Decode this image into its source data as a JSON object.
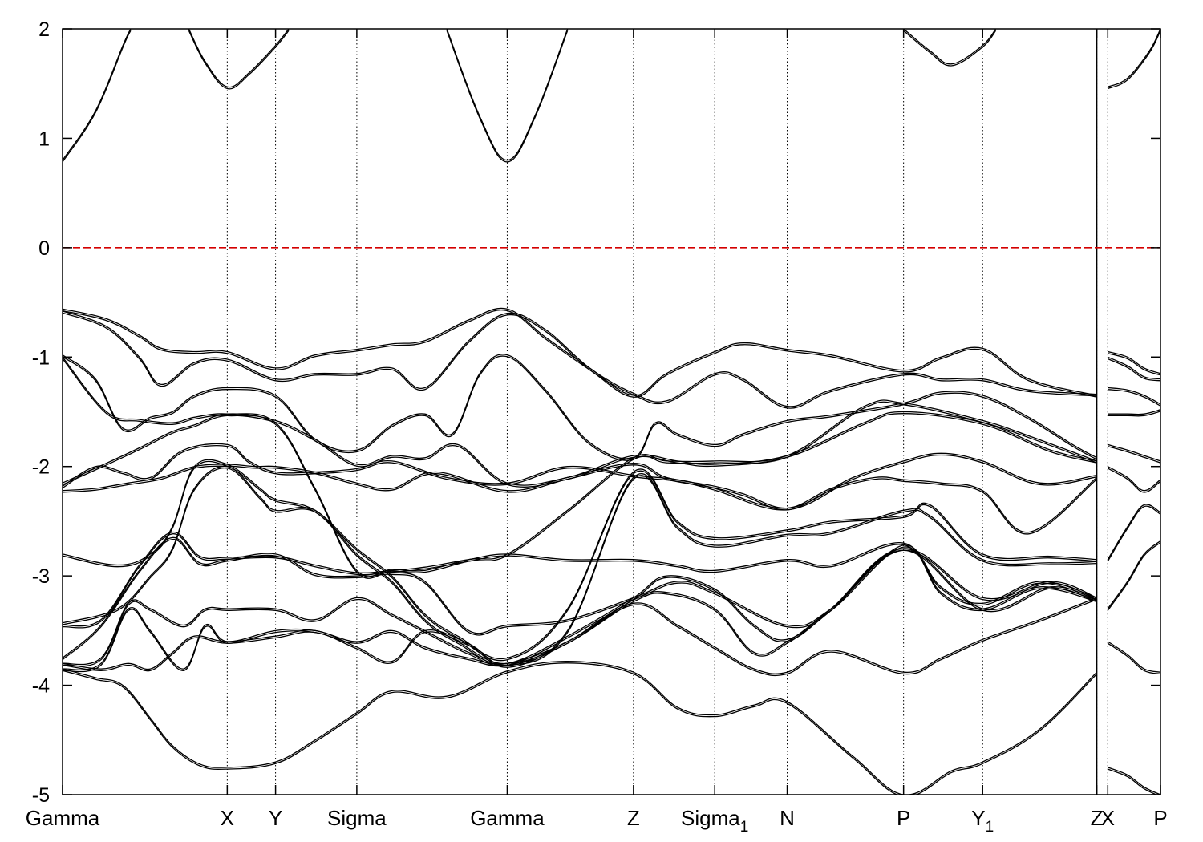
{
  "chart_data": {
    "type": "line",
    "title": "",
    "xlabel": "",
    "ylabel": "",
    "ylim": [
      -5,
      2
    ],
    "y_ticks": [
      -5,
      -4,
      -3,
      -2,
      -1,
      0,
      1,
      2
    ],
    "y_tick_labels": [
      "-5",
      "-4",
      "-3",
      "-2",
      "-1",
      "0",
      "1",
      "2"
    ],
    "k_path": [
      {
        "label": "Gamma",
        "sub": "",
        "x": 0.0
      },
      {
        "label": "X",
        "sub": "",
        "x": 1.5
      },
      {
        "label": "Y",
        "sub": "",
        "x": 1.94
      },
      {
        "label": "Sigma",
        "sub": "",
        "x": 2.68
      },
      {
        "label": "Gamma",
        "sub": "",
        "x": 4.05
      },
      {
        "label": "Z",
        "sub": "",
        "x": 5.2
      },
      {
        "label": "Sigma",
        "sub": "1",
        "x": 5.94
      },
      {
        "label": "N",
        "sub": "",
        "x": 6.6
      },
      {
        "label": "P",
        "sub": "",
        "x": 7.66
      },
      {
        "label": "Y",
        "sub": "1",
        "x": 8.38
      },
      {
        "label": "Z",
        "sub": "",
        "x": 9.42
      },
      {
        "label": "X",
        "sub": "",
        "x": 9.52
      },
      {
        "label": "P",
        "sub": "",
        "x": 10.0
      }
    ],
    "path_break_x": 9.42,
    "fermi_level": 0,
    "fermi_color": "#d40000",
    "band_color": "#000000",
    "grid": "vertical dotted lines at high-symmetry points",
    "legend": "none",
    "series": [
      {
        "x": [
          0,
          0.3,
          0.55,
          0.62
        ],
        "y": [
          0.8,
          1.25,
          1.85,
          2.0
        ]
      },
      {
        "x": [
          1.15,
          1.3,
          1.5,
          1.7,
          1.94,
          2.06
        ],
        "y": [
          2.0,
          1.7,
          1.47,
          1.6,
          1.85,
          2.0
        ]
      },
      {
        "x": [
          3.5,
          3.8,
          4.05,
          4.3,
          4.6
        ],
        "y": [
          2.0,
          1.2,
          0.8,
          1.2,
          2.0
        ]
      },
      {
        "x": [
          7.66,
          7.9,
          8.1,
          8.38,
          8.5
        ],
        "y": [
          2.0,
          1.8,
          1.68,
          1.85,
          2.0
        ]
      },
      {
        "x": [
          9.52,
          9.7,
          9.9,
          10.0
        ],
        "y": [
          1.47,
          1.55,
          1.8,
          2.0
        ]
      },
      {
        "x": [
          0,
          0.4,
          0.7,
          0.9,
          1.2,
          1.5,
          1.94,
          2.3,
          2.68,
          3.0,
          3.3,
          3.7,
          4.05,
          4.4,
          4.8,
          5.2,
          5.5,
          5.94,
          6.2,
          6.6,
          7.0,
          7.66,
          8.0,
          8.38,
          8.8,
          9.42
        ],
        "y": [
          -0.56,
          -0.65,
          -0.8,
          -0.92,
          -0.95,
          -0.95,
          -1.1,
          -0.98,
          -0.93,
          -0.88,
          -0.85,
          -0.66,
          -0.56,
          -0.82,
          -1.1,
          -1.35,
          -1.15,
          -0.95,
          -0.87,
          -0.93,
          -0.98,
          -1.12,
          -1.0,
          -0.92,
          -1.2,
          -1.35
        ]
      },
      {
        "x": [
          0,
          0.4,
          0.7,
          0.9,
          1.2,
          1.5,
          1.94,
          2.3,
          2.68,
          3.0,
          3.3,
          3.7,
          4.05,
          4.4,
          4.8,
          5.2,
          5.5,
          5.94,
          6.2,
          6.6,
          7.0,
          7.66,
          8.0,
          8.38,
          8.8,
          9.42
        ],
        "y": [
          -0.58,
          -0.72,
          -1.0,
          -1.25,
          -1.05,
          -1.02,
          -1.2,
          -1.15,
          -1.15,
          -1.1,
          -1.28,
          -0.85,
          -0.6,
          -0.75,
          -1.1,
          -1.33,
          -1.4,
          -1.15,
          -1.2,
          -1.45,
          -1.3,
          -1.15,
          -1.2,
          -1.2,
          -1.3,
          -1.34
        ]
      },
      {
        "x": [
          0,
          0.3,
          0.55,
          0.8,
          1.0,
          1.2,
          1.5,
          1.94,
          2.3,
          2.68,
          3.0,
          3.3,
          3.55,
          3.8,
          4.05,
          4.4,
          4.8,
          5.2,
          5.4,
          5.6,
          5.94,
          6.2,
          6.6,
          7.0,
          7.66,
          8.0,
          8.38,
          8.8,
          9.2,
          9.42
        ],
        "y": [
          -0.98,
          -1.2,
          -1.65,
          -1.55,
          -1.5,
          -1.35,
          -1.28,
          -1.35,
          -1.75,
          -1.85,
          -1.62,
          -1.52,
          -1.7,
          -1.15,
          -0.98,
          -1.3,
          -1.78,
          -1.92,
          -1.6,
          -1.7,
          -1.8,
          -1.7,
          -1.58,
          -1.53,
          -1.42,
          -1.32,
          -1.35,
          -1.55,
          -1.8,
          -1.92
        ]
      },
      {
        "x": [
          0,
          0.4,
          0.7,
          1.0,
          1.2,
          1.5,
          1.94,
          2.3,
          2.68,
          3.0,
          3.3,
          3.7,
          4.05,
          4.6,
          5.2,
          5.5,
          5.94,
          6.6,
          7.3,
          7.66,
          8.38,
          8.8,
          9.42
        ],
        "y": [
          -1.0,
          -1.5,
          -1.57,
          -1.6,
          -1.55,
          -1.52,
          -1.6,
          -2.2,
          -2.95,
          -2.94,
          -2.95,
          -2.85,
          -2.8,
          -2.4,
          -1.92,
          -1.95,
          -1.95,
          -1.9,
          -1.45,
          -1.42,
          -1.58,
          -1.72,
          -1.95
        ]
      },
      {
        "x": [
          0,
          0.4,
          0.7,
          1.0,
          1.2,
          1.5,
          1.94,
          2.3,
          2.68,
          3.0,
          3.3,
          3.6,
          4.05,
          4.6,
          5.2,
          5.6,
          5.94,
          6.6,
          7.3,
          7.66,
          8.38,
          9.0,
          9.42
        ],
        "y": [
          -2.15,
          -1.97,
          -1.83,
          -1.68,
          -1.62,
          -1.52,
          -1.58,
          -1.75,
          -1.98,
          -1.9,
          -1.92,
          -1.8,
          -2.15,
          -2.1,
          -1.9,
          -1.95,
          -1.98,
          -1.9,
          -1.6,
          -1.5,
          -1.6,
          -1.85,
          -1.95
        ]
      },
      {
        "x": [
          0,
          0.3,
          0.55,
          0.8,
          1.1,
          1.5,
          1.7,
          1.94,
          2.3,
          2.68,
          3.0,
          3.5,
          4.05,
          4.6,
          5.2,
          5.6,
          5.94,
          6.6,
          7.2,
          7.66,
          8.0,
          8.38,
          8.9,
          9.42
        ],
        "y": [
          -2.18,
          -2.0,
          -2.05,
          -2.1,
          -1.85,
          -1.8,
          -1.95,
          -2.05,
          -2.05,
          -2.02,
          -1.95,
          -2.1,
          -2.15,
          -2.0,
          -2.08,
          -2.12,
          -2.2,
          -2.38,
          -2.1,
          -1.95,
          -1.88,
          -1.95,
          -2.15,
          -2.08
        ]
      },
      {
        "x": [
          0,
          0.3,
          0.6,
          0.9,
          1.2,
          1.5,
          1.75,
          1.94,
          2.3,
          2.68,
          3.0,
          3.4,
          4.05,
          4.6,
          5.2,
          5.5,
          5.94,
          6.2,
          6.6,
          7.0,
          7.4,
          7.66,
          8.0,
          8.38,
          8.8,
          9.42
        ],
        "y": [
          -2.22,
          -2.2,
          -2.15,
          -2.1,
          -2.0,
          -1.98,
          -2.0,
          -2.0,
          -2.05,
          -2.15,
          -2.2,
          -2.05,
          -2.22,
          -2.1,
          -1.97,
          -2.1,
          -2.18,
          -2.25,
          -2.38,
          -2.2,
          -2.1,
          -2.12,
          -2.15,
          -2.22,
          -2.6,
          -2.1
        ]
      },
      {
        "x": [
          0,
          0.5,
          0.8,
          1.0,
          1.2,
          1.5,
          1.8,
          1.94,
          2.3,
          2.68,
          3.0,
          3.3,
          3.6,
          4.05,
          4.6,
          5.2,
          5.6,
          5.94,
          6.6,
          7.0,
          7.66,
          7.9,
          8.38,
          9.0,
          9.42
        ],
        "y": [
          -2.8,
          -2.9,
          -2.8,
          -2.55,
          -2.0,
          -1.98,
          -2.2,
          -2.3,
          -2.4,
          -2.75,
          -3.0,
          -3.35,
          -3.55,
          -3.75,
          -3.3,
          -2.05,
          -2.5,
          -2.65,
          -2.58,
          -2.5,
          -2.45,
          -2.35,
          -2.8,
          -2.82,
          -2.85
        ]
      },
      {
        "x": [
          0,
          0.5,
          0.8,
          1.0,
          1.2,
          1.5,
          1.8,
          1.94,
          2.3,
          2.68,
          3.0,
          3.3,
          3.6,
          4.05,
          4.6,
          5.2,
          5.6,
          5.94,
          6.6,
          7.0,
          7.66,
          7.9,
          8.38,
          9.0,
          9.42
        ],
        "y": [
          -3.43,
          -3.3,
          -3.0,
          -2.75,
          -2.2,
          -2.0,
          -2.28,
          -2.4,
          -2.4,
          -2.8,
          -3.05,
          -3.4,
          -3.6,
          -3.8,
          -3.5,
          -2.1,
          -2.55,
          -2.72,
          -2.62,
          -2.6,
          -2.4,
          -2.45,
          -2.85,
          -2.88,
          -2.87
        ]
      },
      {
        "x": [
          0,
          0.35,
          0.7,
          1.0,
          1.25,
          1.5,
          1.94,
          2.3,
          2.68,
          3.0,
          3.3,
          3.7,
          4.05,
          4.6,
          5.2,
          5.6,
          5.94,
          6.6,
          7.0,
          7.66,
          8.0,
          8.38,
          8.9,
          9.42
        ],
        "y": [
          -3.45,
          -3.4,
          -2.9,
          -2.6,
          -2.82,
          -2.83,
          -2.82,
          -2.9,
          -2.97,
          -2.95,
          -2.92,
          -2.85,
          -2.8,
          -2.85,
          -2.85,
          -2.9,
          -2.95,
          -2.85,
          -2.9,
          -2.7,
          -3.1,
          -3.25,
          -3.05,
          -3.2
        ]
      },
      {
        "x": [
          0,
          0.35,
          0.7,
          1.0,
          1.25,
          1.5,
          1.94,
          2.3,
          2.68,
          3.0,
          3.3,
          3.7,
          4.05,
          4.6,
          5.2,
          5.6,
          5.94,
          6.6,
          7.0,
          7.66,
          8.0,
          8.38,
          8.9,
          9.42
        ],
        "y": [
          -3.75,
          -3.45,
          -2.95,
          -2.65,
          -2.88,
          -2.85,
          -2.8,
          -2.98,
          -3.0,
          -2.97,
          -3.05,
          -3.5,
          -3.45,
          -3.4,
          -3.2,
          -3.05,
          -3.15,
          -3.45,
          -3.3,
          -2.72,
          -3.15,
          -3.3,
          -3.1,
          -3.22
        ]
      },
      {
        "x": [
          0,
          0.35,
          0.6,
          0.8,
          1.1,
          1.3,
          1.5,
          1.94,
          2.3,
          2.68,
          3.0,
          3.3,
          3.7,
          4.05,
          4.6,
          5.2,
          5.5,
          5.94,
          6.3,
          6.6,
          7.0,
          7.66,
          8.38,
          9.0,
          9.42
        ],
        "y": [
          -3.8,
          -3.75,
          -3.25,
          -3.3,
          -3.45,
          -3.3,
          -3.3,
          -3.3,
          -3.4,
          -3.2,
          -3.35,
          -3.5,
          -3.7,
          -3.8,
          -3.55,
          -3.2,
          -3.0,
          -3.12,
          -3.45,
          -3.58,
          -3.3,
          -2.75,
          -3.2,
          -3.05,
          -3.2
        ]
      },
      {
        "x": [
          0,
          0.35,
          0.6,
          0.8,
          1.1,
          1.3,
          1.5,
          1.94,
          2.3,
          2.68,
          3.0,
          3.3,
          3.7,
          4.05,
          4.6,
          5.2,
          5.5,
          5.94,
          6.3,
          6.6,
          7.0,
          7.66,
          8.38,
          9.0,
          9.42
        ],
        "y": [
          -3.85,
          -3.8,
          -3.3,
          -3.5,
          -3.85,
          -3.45,
          -3.6,
          -3.5,
          -3.5,
          -3.6,
          -3.5,
          -3.65,
          -3.75,
          -3.8,
          -3.6,
          -3.22,
          -3.15,
          -3.3,
          -3.7,
          -3.6,
          -3.3,
          -2.75,
          -3.3,
          -3.1,
          -3.22
        ]
      },
      {
        "x": [
          0,
          0.35,
          0.6,
          0.8,
          1.0,
          1.2,
          1.5,
          1.94,
          2.3,
          2.68,
          3.0,
          3.3,
          3.7,
          4.05,
          4.6,
          5.2,
          5.6,
          5.94,
          6.3,
          6.6,
          7.0,
          7.66,
          8.0,
          8.38,
          8.9,
          9.42
        ],
        "y": [
          -3.8,
          -3.85,
          -3.8,
          -3.85,
          -3.7,
          -3.55,
          -3.6,
          -3.55,
          -3.5,
          -3.65,
          -3.78,
          -3.5,
          -3.62,
          -3.82,
          -3.6,
          -3.25,
          -3.45,
          -3.65,
          -3.85,
          -3.88,
          -3.68,
          -3.88,
          -3.75,
          -3.58,
          -3.4,
          -3.2
        ]
      },
      {
        "x": [
          0,
          0.3,
          0.55,
          0.8,
          1.0,
          1.25,
          1.5,
          1.94,
          2.3,
          2.68,
          3.0,
          3.5,
          4.05,
          4.6,
          5.2,
          5.6,
          5.94,
          6.3,
          6.6,
          7.2,
          7.66,
          8.1,
          8.38,
          8.9,
          9.42
        ],
        "y": [
          -3.85,
          -3.93,
          -4.0,
          -4.3,
          -4.55,
          -4.72,
          -4.75,
          -4.7,
          -4.5,
          -4.25,
          -4.05,
          -4.1,
          -3.87,
          -3.78,
          -3.88,
          -4.2,
          -4.27,
          -4.18,
          -4.15,
          -4.65,
          -5.0,
          -4.78,
          -4.7,
          -4.4,
          -3.88
        ]
      },
      {
        "x": [
          9.52,
          9.7,
          9.85,
          10.0
        ],
        "y": [
          -0.95,
          -1.0,
          -1.1,
          -1.15
        ]
      },
      {
        "x": [
          9.52,
          9.7,
          9.85,
          10.0
        ],
        "y": [
          -1.0,
          -1.08,
          -1.18,
          -1.2
        ]
      },
      {
        "x": [
          9.52,
          9.7,
          9.85,
          10.0
        ],
        "y": [
          -1.28,
          -1.3,
          -1.35,
          -1.43
        ]
      },
      {
        "x": [
          9.52,
          9.7,
          9.85,
          10.0
        ],
        "y": [
          -1.52,
          -1.52,
          -1.52,
          -1.48
        ]
      },
      {
        "x": [
          9.52,
          9.7,
          9.85,
          10.0
        ],
        "y": [
          -1.8,
          -1.85,
          -1.9,
          -1.95
        ]
      },
      {
        "x": [
          9.52,
          9.7,
          9.85,
          10.0
        ],
        "y": [
          -2.0,
          -2.1,
          -2.22,
          -2.12
        ]
      },
      {
        "x": [
          9.52,
          9.7,
          9.85,
          10.0
        ],
        "y": [
          -2.85,
          -2.55,
          -2.35,
          -2.42
        ]
      },
      {
        "x": [
          9.52,
          9.7,
          9.85,
          10.0
        ],
        "y": [
          -3.3,
          -3.05,
          -2.8,
          -2.68
        ]
      },
      {
        "x": [
          9.52,
          9.7,
          9.85,
          10.0
        ],
        "y": [
          -3.6,
          -3.72,
          -3.85,
          -3.88
        ]
      },
      {
        "x": [
          9.52,
          9.7,
          9.85,
          10.0
        ],
        "y": [
          -4.75,
          -4.82,
          -4.93,
          -5.0
        ]
      }
    ]
  }
}
